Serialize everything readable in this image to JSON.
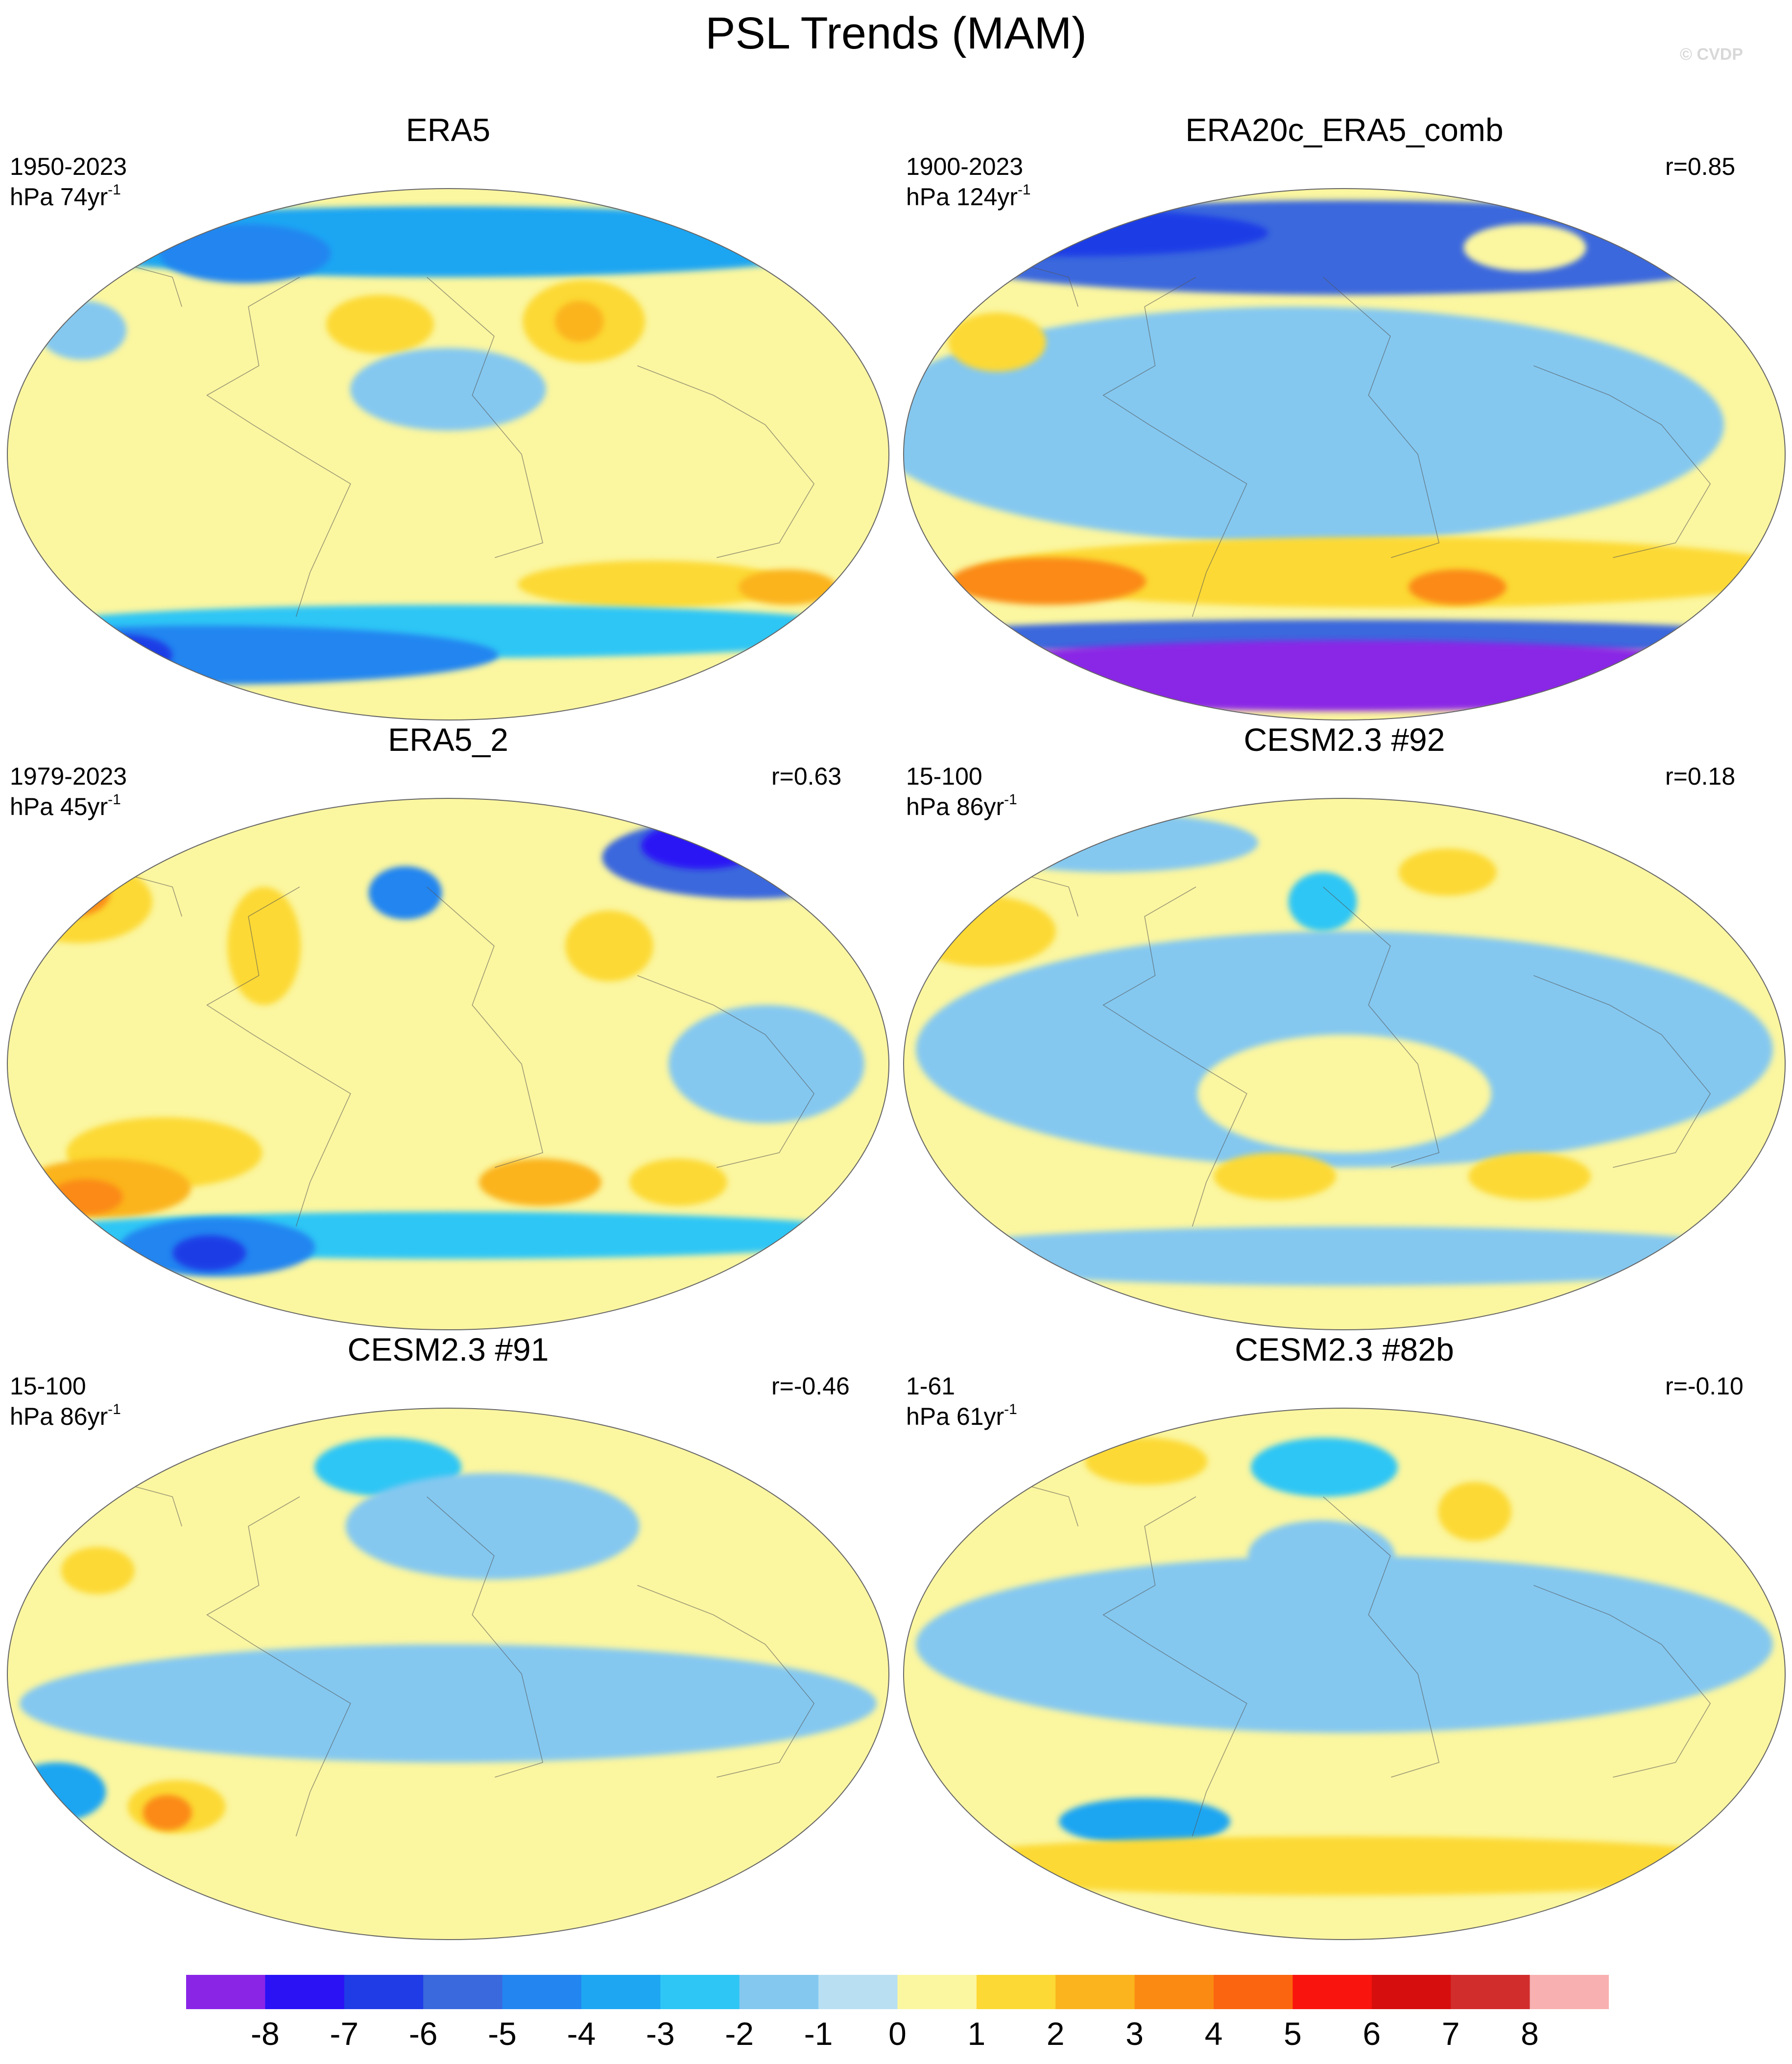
{
  "title": "PSL Trends (MAM)",
  "watermark": "© CVDP",
  "colorbar": {
    "colors": [
      "#8a25e6",
      "#2a12f5",
      "#1f3ce6",
      "#3a68dd",
      "#2385f0",
      "#1ea6f2",
      "#2ec6f5",
      "#84c8f0",
      "#b8dff2",
      "#fbf6a0",
      "#fcd934",
      "#fbb41d",
      "#fb8a12",
      "#fb6510",
      "#fa140e",
      "#d60e0e",
      "#d22d2d",
      "#f8b0b0"
    ],
    "labels": [
      "-8",
      "-7",
      "-6",
      "-5",
      "-4",
      "-3",
      "-2",
      "-1",
      "0",
      "1",
      "2",
      "3",
      "4",
      "5",
      "6",
      "7",
      "8"
    ]
  },
  "panels": [
    {
      "title": "ERA5",
      "period": "1950-2023",
      "units_prefix": "hPa 74yr",
      "units_exp": "-1",
      "r": "",
      "blobs": [
        {
          "lon": 0,
          "lat": 72,
          "rx": 175,
          "ry": 12,
          "level": -3
        },
        {
          "lon": -100,
          "lat": 68,
          "rx": 35,
          "ry": 10,
          "level": -4
        },
        {
          "lon": 60,
          "lat": 45,
          "rx": 25,
          "ry": 14,
          "level": 2
        },
        {
          "lon": 58,
          "lat": 45,
          "rx": 10,
          "ry": 7,
          "level": 3
        },
        {
          "lon": -160,
          "lat": 42,
          "rx": 18,
          "ry": 10,
          "level": -1
        },
        {
          "lon": -30,
          "lat": 44,
          "rx": 22,
          "ry": 10,
          "level": 2
        },
        {
          "lon": 0,
          "lat": 22,
          "rx": 40,
          "ry": 14,
          "level": -1
        },
        {
          "lon": 20,
          "lat": -40,
          "rx": 170,
          "ry": 12,
          "level": 1
        },
        {
          "lon": 90,
          "lat": -44,
          "rx": 55,
          "ry": 8,
          "level": 2
        },
        {
          "lon": 150,
          "lat": -45,
          "rx": 20,
          "ry": 6,
          "level": 3
        },
        {
          "lon": 0,
          "lat": -60,
          "rx": 180,
          "ry": 9,
          "level": -2
        },
        {
          "lon": -120,
          "lat": -68,
          "rx": 120,
          "ry": 10,
          "level": -4
        },
        {
          "lon": -160,
          "lat": -68,
          "rx": 20,
          "ry": 7,
          "level": -6
        }
      ]
    },
    {
      "title": "ERA20c_ERA5_comb",
      "period": "1900-2023",
      "units_prefix": "hPa 124yr",
      "units_exp": "-1",
      "r": "r=0.85",
      "blobs": [
        {
          "lon": 0,
          "lat": 70,
          "rx": 180,
          "ry": 16,
          "level": -5
        },
        {
          "lon": -140,
          "lat": 75,
          "rx": 80,
          "ry": 8,
          "level": -6
        },
        {
          "lon": 90,
          "lat": 70,
          "rx": 25,
          "ry": 8,
          "level": 1
        },
        {
          "lon": -20,
          "lat": 10,
          "rx": 175,
          "ry": 40,
          "level": -1
        },
        {
          "lon": -150,
          "lat": 38,
          "rx": 20,
          "ry": 10,
          "level": 2
        },
        {
          "lon": 20,
          "lat": -40,
          "rx": 170,
          "ry": 12,
          "level": 2
        },
        {
          "lon": -130,
          "lat": -43,
          "rx": 40,
          "ry": 8,
          "level": 4
        },
        {
          "lon": 50,
          "lat": -45,
          "rx": 20,
          "ry": 6,
          "level": 4
        },
        {
          "lon": 0,
          "lat": -62,
          "rx": 180,
          "ry": 6,
          "level": -5
        },
        {
          "lon": 0,
          "lat": -75,
          "rx": 180,
          "ry": 12,
          "level": -8
        }
      ]
    },
    {
      "title": "ERA5_2",
      "period": "1979-2023",
      "units_prefix": "hPa 45yr",
      "units_exp": "-1",
      "r": "r=0.63",
      "blobs": [
        {
          "lon": 150,
          "lat": 70,
          "rx": 60,
          "ry": 14,
          "level": -5
        },
        {
          "lon": 130,
          "lat": 74,
          "rx": 25,
          "ry": 8,
          "level": -7
        },
        {
          "lon": -20,
          "lat": 58,
          "rx": 15,
          "ry": 9,
          "level": -4
        },
        {
          "lon": 70,
          "lat": 40,
          "rx": 18,
          "ry": 12,
          "level": 2
        },
        {
          "lon": -170,
          "lat": 55,
          "rx": 30,
          "ry": 14,
          "level": 2
        },
        {
          "lon": -175,
          "lat": 58,
          "rx": 15,
          "ry": 8,
          "level": 4
        },
        {
          "lon": -80,
          "lat": 40,
          "rx": 15,
          "ry": 20,
          "level": 2
        },
        {
          "lon": 130,
          "lat": 0,
          "rx": 40,
          "ry": 20,
          "level": -1
        },
        {
          "lon": -120,
          "lat": -30,
          "rx": 40,
          "ry": 12,
          "level": 2
        },
        {
          "lon": -150,
          "lat": -42,
          "rx": 35,
          "ry": 10,
          "level": 3
        },
        {
          "lon": -160,
          "lat": -45,
          "rx": 15,
          "ry": 6,
          "level": 4
        },
        {
          "lon": 40,
          "lat": -40,
          "rx": 25,
          "ry": 8,
          "level": 3
        },
        {
          "lon": 100,
          "lat": -40,
          "rx": 20,
          "ry": 8,
          "level": 2
        },
        {
          "lon": 0,
          "lat": -58,
          "rx": 180,
          "ry": 8,
          "level": -2
        },
        {
          "lon": -110,
          "lat": -62,
          "rx": 40,
          "ry": 10,
          "level": -4
        },
        {
          "lon": -115,
          "lat": -64,
          "rx": 15,
          "ry": 6,
          "level": -6
        }
      ]
    },
    {
      "title": "CESM2.3 #92",
      "period": "15-100",
      "units_prefix": "hPa 86yr",
      "units_exp": "-1",
      "r": "r=0.18",
      "blobs": [
        {
          "lon": 0,
          "lat": 5,
          "rx": 175,
          "ry": 40,
          "level": -1
        },
        {
          "lon": -120,
          "lat": 75,
          "rx": 60,
          "ry": 10,
          "level": -1
        },
        {
          "lon": -10,
          "lat": 55,
          "rx": 14,
          "ry": 10,
          "level": -2
        },
        {
          "lon": -160,
          "lat": 45,
          "rx": 30,
          "ry": 12,
          "level": 2
        },
        {
          "lon": 50,
          "lat": 65,
          "rx": 20,
          "ry": 8,
          "level": 2
        },
        {
          "lon": 0,
          "lat": -10,
          "rx": 60,
          "ry": 20,
          "level": 1
        },
        {
          "lon": -30,
          "lat": -38,
          "rx": 25,
          "ry": 8,
          "level": 2
        },
        {
          "lon": 80,
          "lat": -38,
          "rx": 25,
          "ry": 8,
          "level": 2
        },
        {
          "lon": 0,
          "lat": -65,
          "rx": 180,
          "ry": 10,
          "level": -1
        }
      ]
    },
    {
      "title": "CESM2.3 #91",
      "period": "15-100",
      "units_prefix": "hPa 86yr",
      "units_exp": "-1",
      "r": "r=-0.46",
      "blobs": [
        {
          "lon": -30,
          "lat": 70,
          "rx": 30,
          "ry": 10,
          "level": -2
        },
        {
          "lon": 20,
          "lat": 50,
          "rx": 60,
          "ry": 18,
          "level": -1
        },
        {
          "lon": -150,
          "lat": 35,
          "rx": 15,
          "ry": 8,
          "level": 2
        },
        {
          "lon": 0,
          "lat": -10,
          "rx": 175,
          "ry": 20,
          "level": -1
        },
        {
          "lon": -170,
          "lat": -40,
          "rx": 20,
          "ry": 10,
          "level": -3
        },
        {
          "lon": -120,
          "lat": -45,
          "rx": 20,
          "ry": 9,
          "level": 2
        },
        {
          "lon": -125,
          "lat": -47,
          "rx": 10,
          "ry": 6,
          "level": 4
        },
        {
          "lon": 0,
          "lat": -65,
          "rx": 180,
          "ry": 8,
          "level": 1
        }
      ]
    },
    {
      "title": "CESM2.3 #82b",
      "period": "1-61",
      "units_prefix": "hPa 61yr",
      "units_exp": "-1",
      "r": "r=-0.10",
      "blobs": [
        {
          "lon": 0,
          "lat": 10,
          "rx": 175,
          "ry": 30,
          "level": -1
        },
        {
          "lon": -10,
          "lat": 70,
          "rx": 30,
          "ry": 10,
          "level": -2
        },
        {
          "lon": -100,
          "lat": 72,
          "rx": 25,
          "ry": 8,
          "level": 2
        },
        {
          "lon": 60,
          "lat": 55,
          "rx": 15,
          "ry": 10,
          "level": 2
        },
        {
          "lon": -10,
          "lat": 40,
          "rx": 30,
          "ry": 12,
          "level": -1
        },
        {
          "lon": 0,
          "lat": -40,
          "rx": 175,
          "ry": 10,
          "level": 1
        },
        {
          "lon": -90,
          "lat": -50,
          "rx": 35,
          "ry": 8,
          "level": -3
        },
        {
          "lon": 0,
          "lat": -65,
          "rx": 180,
          "ry": 10,
          "level": 2
        }
      ]
    }
  ]
}
